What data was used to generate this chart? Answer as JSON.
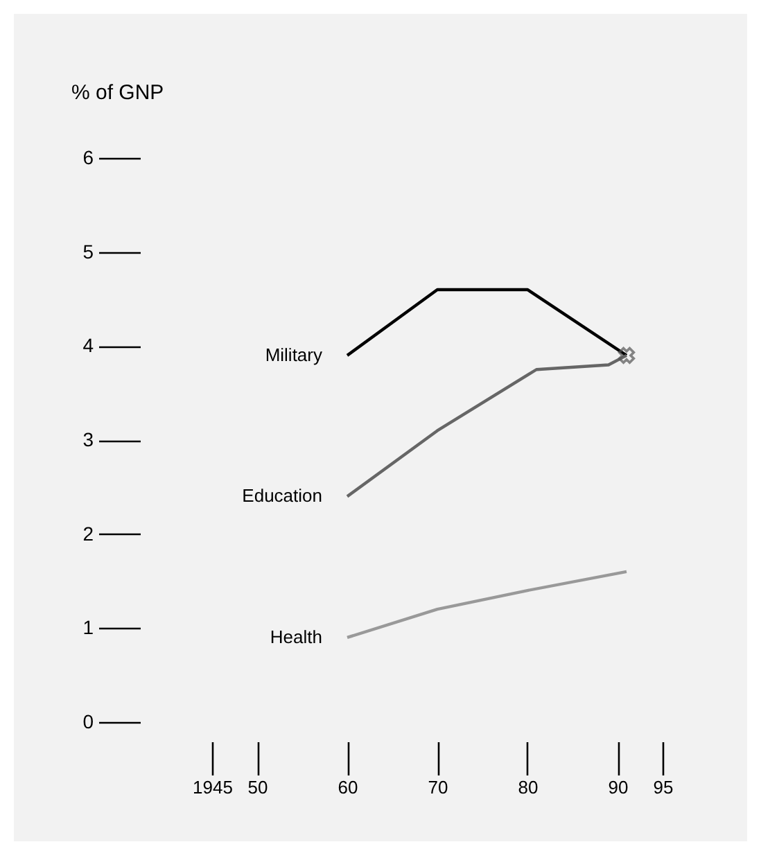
{
  "chart_data": {
    "type": "line",
    "ylabel": "% of GNP",
    "xlim": [
      1945,
      1995
    ],
    "ylim": [
      0,
      6
    ],
    "xticks": [
      {
        "value": 1945,
        "label": "1945"
      },
      {
        "value": 1950,
        "label": "50"
      },
      {
        "value": 1960,
        "label": "60"
      },
      {
        "value": 1970,
        "label": "70"
      },
      {
        "value": 1980,
        "label": "80"
      },
      {
        "value": 1990,
        "label": "90"
      },
      {
        "value": 1995,
        "label": "95"
      }
    ],
    "yticks": [
      0,
      1,
      2,
      3,
      4,
      5,
      6
    ],
    "grid": false,
    "series": [
      {
        "name": "Military",
        "color": "#000000",
        "x": [
          1960,
          1970,
          1980,
          1991
        ],
        "values": [
          3.9,
          4.6,
          4.6,
          3.9
        ]
      },
      {
        "name": "Education",
        "color": "#666666",
        "x": [
          1960,
          1970,
          1981,
          1989,
          1991
        ],
        "values": [
          2.4,
          3.1,
          3.75,
          3.8,
          3.9
        ]
      },
      {
        "name": "Health",
        "color": "#999999",
        "x": [
          1960,
          1970,
          1980,
          1991
        ],
        "values": [
          0.9,
          1.2,
          1.4,
          1.6
        ]
      },
      {
        "type": "scatter",
        "marker": "cross",
        "color": "#555555",
        "x": [
          1991
        ],
        "values": [
          3.9
        ]
      }
    ]
  }
}
